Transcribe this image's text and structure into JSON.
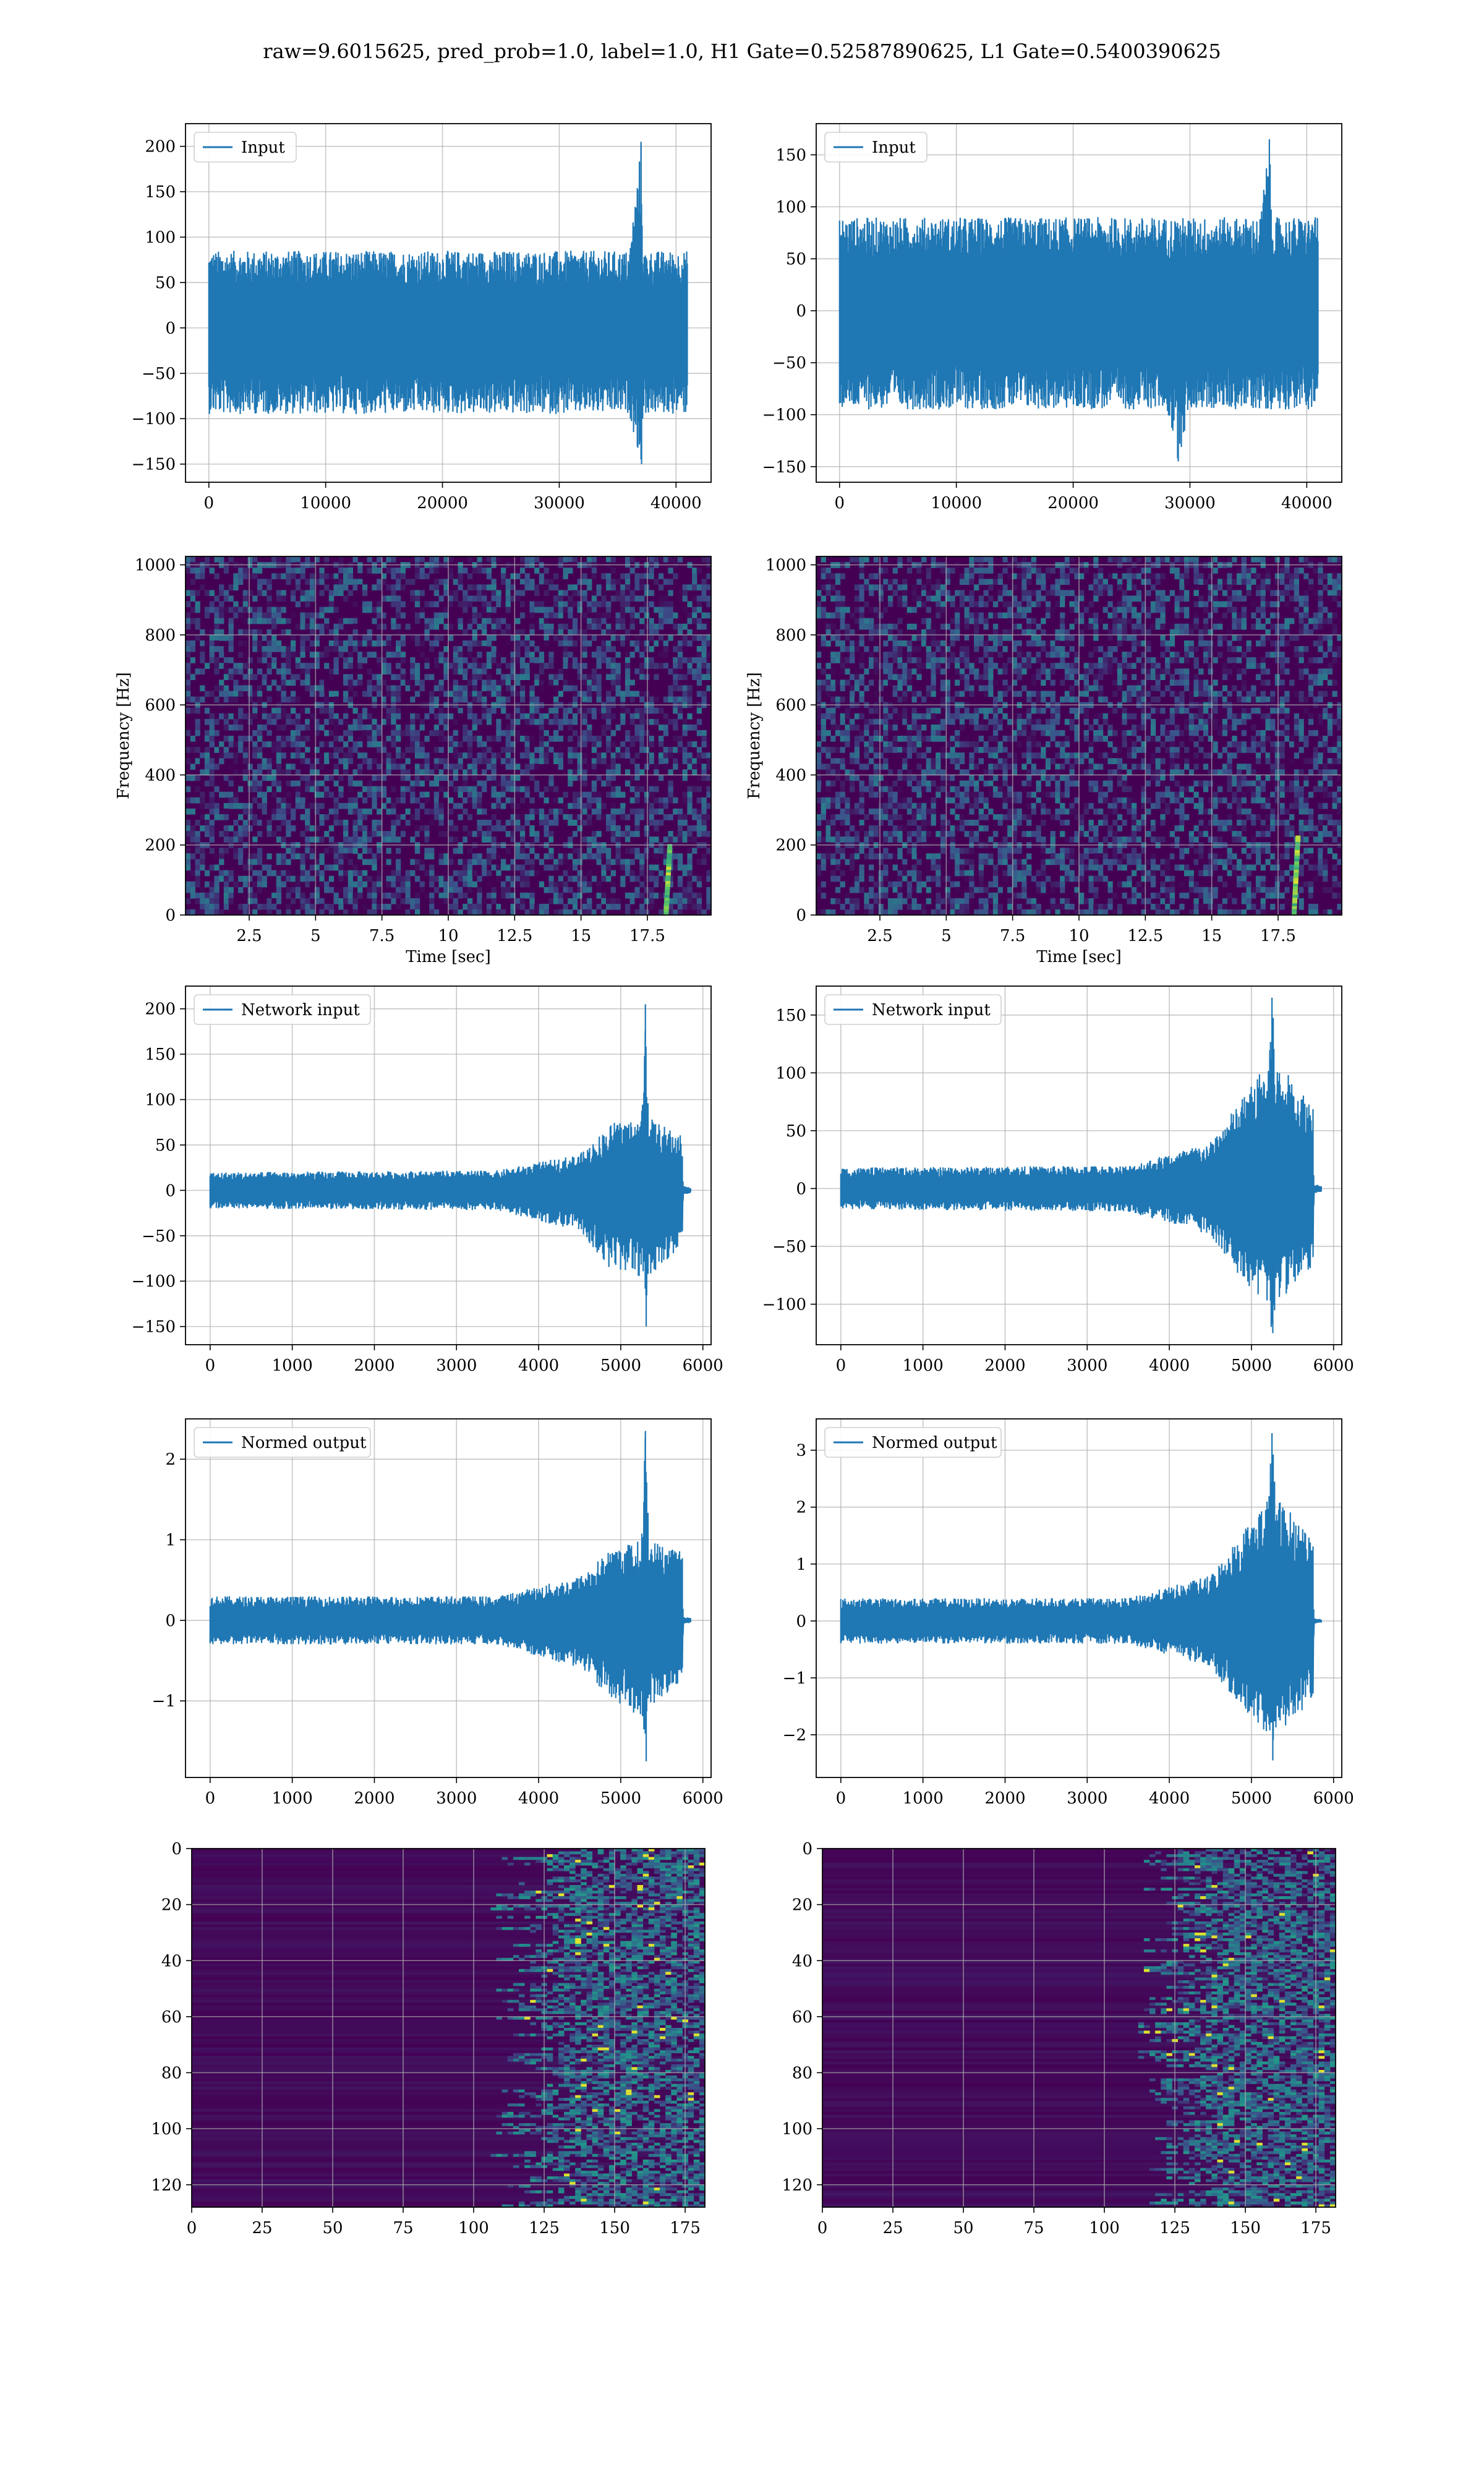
{
  "title": "raw=9.6015625, pred_prob=1.0, label=1.0, H1 Gate=0.52587890625, L1 Gate=0.5400390625",
  "colors": {
    "line": "#1f77b4",
    "grid": "#b0b0b0",
    "viridis_low": "#440154",
    "viridis_mid": "#21918c",
    "viridis_high": "#fde725"
  },
  "chart_data": [
    {
      "id": "h1-input",
      "type": "line",
      "legend": "Input",
      "x_ticks": [
        0,
        10000,
        20000,
        30000,
        40000
      ],
      "xlim": [
        -2000,
        43000
      ],
      "y_ticks": [
        -150,
        -100,
        -50,
        0,
        50,
        100,
        150,
        200
      ],
      "ylim": [
        -170,
        225
      ],
      "series": [
        {
          "name": "Input",
          "x_range": [
            0,
            40960
          ],
          "n": 900,
          "envelope": [
            [
              0,
              85
            ],
            [
              36000,
              85
            ],
            [
              37000,
              205
            ],
            [
              37200,
              85
            ],
            [
              40960,
              85
            ]
          ],
          "env_neg": [
            [
              0,
              -95
            ],
            [
              36000,
              -95
            ],
            [
              37000,
              -150
            ],
            [
              37200,
              -95
            ],
            [
              40960,
              -95
            ]
          ],
          "peaks": [
            [
              37000,
              205
            ],
            [
              37050,
              -150
            ]
          ]
        }
      ]
    },
    {
      "id": "l1-input",
      "type": "line",
      "legend": "Input",
      "x_ticks": [
        0,
        10000,
        20000,
        30000,
        40000
      ],
      "xlim": [
        -2000,
        43000
      ],
      "y_ticks": [
        -150,
        -100,
        -50,
        0,
        50,
        100,
        150
      ],
      "ylim": [
        -165,
        180
      ],
      "series": [
        {
          "name": "Input",
          "x_range": [
            0,
            40960
          ],
          "n": 900,
          "envelope": [
            [
              0,
              90
            ],
            [
              36000,
              90
            ],
            [
              36800,
              165
            ],
            [
              37000,
              90
            ],
            [
              40960,
              90
            ]
          ],
          "env_neg": [
            [
              0,
              -95
            ],
            [
              28000,
              -95
            ],
            [
              29000,
              -145
            ],
            [
              30000,
              -95
            ],
            [
              40960,
              -95
            ]
          ],
          "peaks": [
            [
              36800,
              165
            ],
            [
              29000,
              -145
            ]
          ]
        }
      ]
    },
    {
      "id": "h1-spectrogram",
      "type": "heatmap",
      "xlabel": "Time [sec]",
      "ylabel": "Frequency [Hz]",
      "x_ticks": [
        2.5,
        5.0,
        7.5,
        10.0,
        12.5,
        15.0,
        17.5
      ],
      "xlim": [
        0.1,
        19.9
      ],
      "y_ticks": [
        0,
        200,
        400,
        600,
        800,
        1000
      ],
      "ylim": [
        0,
        1024
      ],
      "chirp": {
        "t": 18.2,
        "f_max": 200
      }
    },
    {
      "id": "l1-spectrogram",
      "type": "heatmap",
      "xlabel": "Time [sec]",
      "ylabel": "Frequency [Hz]",
      "x_ticks": [
        2.5,
        5.0,
        7.5,
        10.0,
        12.5,
        15.0,
        17.5
      ],
      "xlim": [
        0.1,
        19.9
      ],
      "y_ticks": [
        0,
        200,
        400,
        600,
        800,
        1000
      ],
      "ylim": [
        0,
        1024
      ],
      "chirp": {
        "t": 18.1,
        "f_max": 220
      }
    },
    {
      "id": "h1-network-input",
      "type": "line",
      "legend": "Network input",
      "x_ticks": [
        0,
        1000,
        2000,
        3000,
        4000,
        5000,
        6000
      ],
      "xlim": [
        -300,
        6100
      ],
      "y_ticks": [
        -150,
        -100,
        -50,
        0,
        50,
        100,
        150,
        200
      ],
      "ylim": [
        -170,
        225
      ],
      "series": [
        {
          "name": "Network input",
          "x_range": [
            0,
            5850
          ],
          "n": 700,
          "envelope": [
            [
              0,
              20
            ],
            [
              3500,
              22
            ],
            [
              4500,
              40
            ],
            [
              4900,
              75
            ],
            [
              5250,
              80
            ],
            [
              5300,
              205
            ],
            [
              5350,
              80
            ],
            [
              5750,
              60
            ],
            [
              5760,
              5
            ],
            [
              5850,
              3
            ]
          ],
          "env_neg": [
            [
              0,
              -20
            ],
            [
              3500,
              -22
            ],
            [
              4500,
              -45
            ],
            [
              4900,
              -90
            ],
            [
              5250,
              -95
            ],
            [
              5300,
              -150
            ],
            [
              5350,
              -95
            ],
            [
              5750,
              -60
            ],
            [
              5760,
              -5
            ],
            [
              5850,
              -3
            ]
          ],
          "peaks": [
            [
              5300,
              205
            ],
            [
              5310,
              -150
            ]
          ]
        }
      ]
    },
    {
      "id": "l1-network-input",
      "type": "line",
      "legend": "Network input",
      "x_ticks": [
        0,
        1000,
        2000,
        3000,
        4000,
        5000,
        6000
      ],
      "xlim": [
        -300,
        6100
      ],
      "y_ticks": [
        -100,
        -50,
        0,
        50,
        100,
        150
      ],
      "ylim": [
        -135,
        175
      ],
      "series": [
        {
          "name": "Network input",
          "x_range": [
            0,
            5850
          ],
          "n": 700,
          "envelope": [
            [
              0,
              18
            ],
            [
              3500,
              20
            ],
            [
              4500,
              40
            ],
            [
              4900,
              80
            ],
            [
              5200,
              110
            ],
            [
              5250,
              165
            ],
            [
              5300,
              110
            ],
            [
              5750,
              75
            ],
            [
              5760,
              4
            ],
            [
              5850,
              3
            ]
          ],
          "env_neg": [
            [
              0,
              -18
            ],
            [
              3500,
              -20
            ],
            [
              4500,
              -40
            ],
            [
              4900,
              -80
            ],
            [
              5200,
              -105
            ],
            [
              5250,
              -125
            ],
            [
              5300,
              -100
            ],
            [
              5750,
              -70
            ],
            [
              5760,
              -4
            ],
            [
              5850,
              -3
            ]
          ],
          "peaks": [
            [
              5250,
              165
            ],
            [
              5260,
              -125
            ]
          ]
        }
      ]
    },
    {
      "id": "h1-normed-output",
      "type": "line",
      "legend": "Normed output",
      "x_ticks": [
        0,
        1000,
        2000,
        3000,
        4000,
        5000,
        6000
      ],
      "xlim": [
        -300,
        6100
      ],
      "y_ticks": [
        -1,
        0,
        1,
        2
      ],
      "ylim": [
        -1.95,
        2.5
      ],
      "series": [
        {
          "name": "Normed output",
          "x_range": [
            0,
            5850
          ],
          "n": 700,
          "envelope": [
            [
              0,
              0.3
            ],
            [
              3500,
              0.3
            ],
            [
              4500,
              0.55
            ],
            [
              4900,
              0.9
            ],
            [
              5250,
              1.0
            ],
            [
              5300,
              2.35
            ],
            [
              5350,
              1.0
            ],
            [
              5750,
              0.9
            ],
            [
              5760,
              0.05
            ],
            [
              5850,
              0.03
            ]
          ],
          "env_neg": [
            [
              0,
              -0.3
            ],
            [
              3500,
              -0.3
            ],
            [
              4500,
              -0.6
            ],
            [
              4900,
              -1.0
            ],
            [
              5250,
              -1.2
            ],
            [
              5300,
              -1.75
            ],
            [
              5350,
              -1.1
            ],
            [
              5750,
              -0.8
            ],
            [
              5760,
              -0.05
            ],
            [
              5850,
              -0.03
            ]
          ],
          "peaks": [
            [
              5300,
              2.35
            ],
            [
              5310,
              -1.75
            ]
          ]
        }
      ]
    },
    {
      "id": "l1-normed-output",
      "type": "line",
      "legend": "Normed output",
      "x_ticks": [
        0,
        1000,
        2000,
        3000,
        4000,
        5000,
        6000
      ],
      "xlim": [
        -300,
        6100
      ],
      "y_ticks": [
        -2,
        -1,
        0,
        1,
        2,
        3
      ],
      "ylim": [
        -2.75,
        3.55
      ],
      "series": [
        {
          "name": "Normed output",
          "x_range": [
            0,
            5850
          ],
          "n": 700,
          "envelope": [
            [
              0,
              0.4
            ],
            [
              3500,
              0.4
            ],
            [
              4500,
              0.8
            ],
            [
              4900,
              1.6
            ],
            [
              5200,
              2.2
            ],
            [
              5250,
              3.3
            ],
            [
              5300,
              2.2
            ],
            [
              5750,
              1.5
            ],
            [
              5760,
              0.05
            ],
            [
              5850,
              0.03
            ]
          ],
          "env_neg": [
            [
              0,
              -0.4
            ],
            [
              3500,
              -0.4
            ],
            [
              4500,
              -0.8
            ],
            [
              4900,
              -1.6
            ],
            [
              5200,
              -2.0
            ],
            [
              5250,
              -2.45
            ],
            [
              5300,
              -2.0
            ],
            [
              5750,
              -1.4
            ],
            [
              5760,
              -0.05
            ],
            [
              5850,
              -0.03
            ]
          ],
          "peaks": [
            [
              5250,
              3.3
            ],
            [
              5260,
              -2.45
            ]
          ]
        }
      ]
    },
    {
      "id": "h1-gate-map",
      "type": "heatmap",
      "x_ticks": [
        0,
        25,
        50,
        75,
        100,
        125,
        150,
        175
      ],
      "xlim": [
        0,
        182
      ],
      "y_ticks": [
        0,
        20,
        40,
        60,
        80,
        100,
        120
      ],
      "ylim": [
        128,
        0
      ],
      "activity_onset": 120
    },
    {
      "id": "l1-gate-map",
      "type": "heatmap",
      "x_ticks": [
        0,
        25,
        50,
        75,
        100,
        125,
        150,
        175
      ],
      "xlim": [
        0,
        182
      ],
      "y_ticks": [
        0,
        20,
        40,
        60,
        80,
        100,
        120
      ],
      "ylim": [
        128,
        0
      ],
      "activity_onset": 125
    }
  ]
}
